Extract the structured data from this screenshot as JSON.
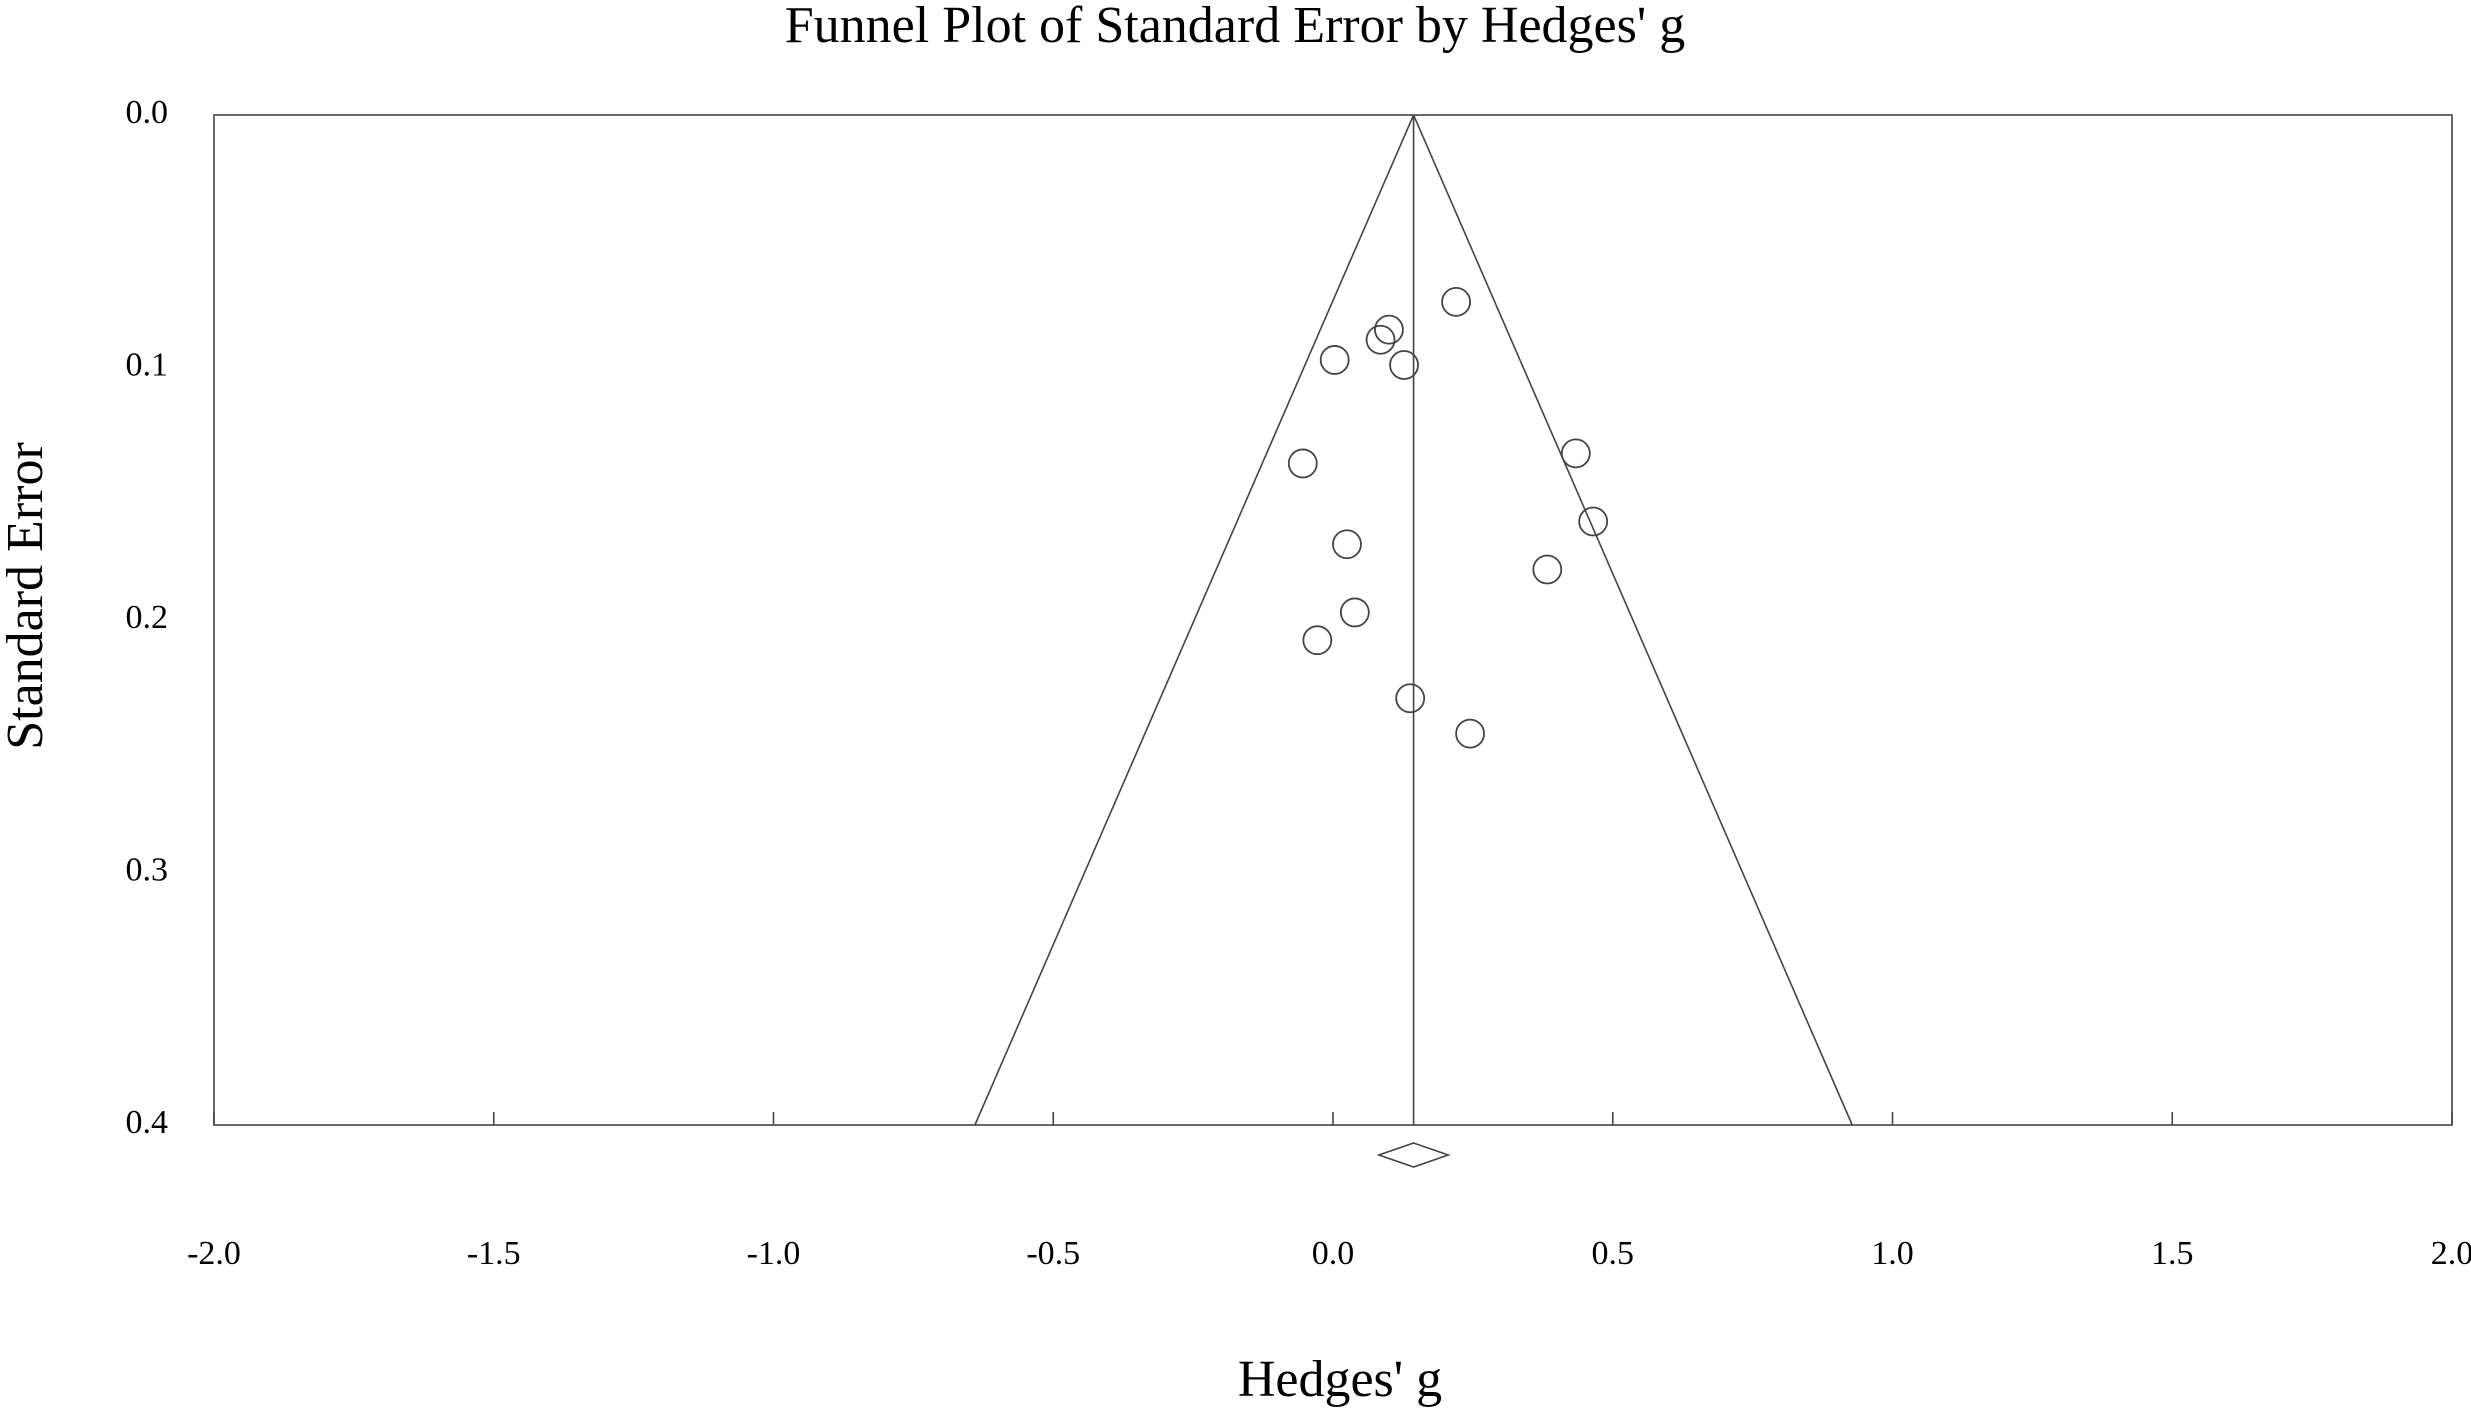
{
  "chart_data": {
    "type": "scatter",
    "title": "Funnel Plot of Standard Error by Hedges' g",
    "x_label": "Hedges' g",
    "y_label": "Standard Error",
    "x": [
      0.22,
      0.1,
      0.085,
      0.003,
      0.127,
      0.434,
      -0.054,
      0.465,
      0.025,
      0.383,
      0.039,
      -0.028,
      0.138,
      0.245
    ],
    "values": [
      0.074,
      0.085,
      0.089,
      0.097,
      0.099,
      0.134,
      0.138,
      0.161,
      0.17,
      0.18,
      0.197,
      0.208,
      0.231,
      0.245
    ],
    "color": "#444444",
    "xlim": [
      -2,
      2
    ],
    "ylim": [
      0,
      0.4
    ],
    "y_inverted": true,
    "xticks": [
      {
        "value": -2,
        "label": "-2.0"
      },
      {
        "value": -1.5,
        "label": "-1.5"
      },
      {
        "value": -1,
        "label": "-1.0"
      },
      {
        "value": -0.5,
        "label": "-0.5"
      },
      {
        "value": 0,
        "label": "0.0"
      },
      {
        "value": 0.5,
        "label": "0.5"
      },
      {
        "value": 1,
        "label": "1.0"
      },
      {
        "value": 1.5,
        "label": "1.5"
      },
      {
        "value": 2,
        "label": "2.0"
      }
    ],
    "yticks": [
      {
        "value": 0,
        "label": "0.0"
      },
      {
        "value": 0.1,
        "label": "0.1"
      },
      {
        "value": 0.2,
        "label": "0.2"
      },
      {
        "value": 0.3,
        "label": "0.3"
      },
      {
        "value": 0.4,
        "label": "0.4"
      }
    ],
    "summary": {
      "estimate": 0.144,
      "ci": [
        0.082,
        0.206
      ]
    },
    "funnel_base_x": [
      -0.64,
      0.928
    ]
  }
}
